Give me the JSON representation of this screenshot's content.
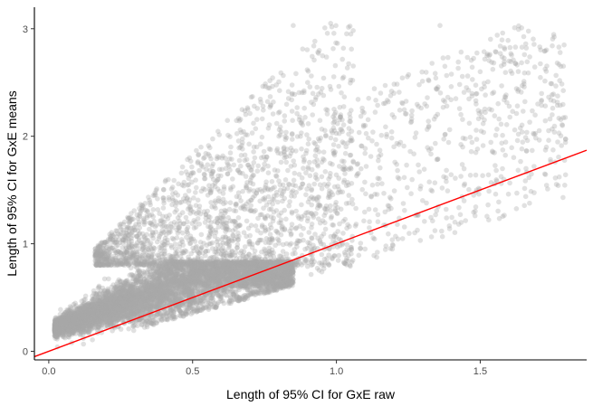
{
  "chart_data": {
    "type": "scatter",
    "title": "",
    "xlabel": "Length of 95% CI for GxE raw",
    "ylabel": "Length of 95% CI for GxE means",
    "xlim": [
      -0.05,
      1.87
    ],
    "ylim": [
      -0.08,
      3.2
    ],
    "x_ticks": [
      0,
      0.5,
      1,
      1.5
    ],
    "x_tick_labels": [
      "0.0",
      "0.5",
      "1.0",
      "1.5"
    ],
    "y_ticks": [
      0,
      1,
      2,
      3
    ],
    "y_tick_labels": [
      "0",
      "1",
      "2",
      "3"
    ],
    "grid": false,
    "legend": "none",
    "point_color": "#aaaaaa",
    "point_alpha": 0.35,
    "approx_point_count": 9000,
    "trend_line": {
      "slope": 1.0,
      "intercept": 0.0,
      "color": "#ff0000"
    },
    "sample_points": [
      [
        0.03,
        0.04
      ],
      [
        0.08,
        0.08
      ],
      [
        0.12,
        0.12
      ],
      [
        0.18,
        0.2
      ],
      [
        0.2,
        0.83
      ],
      [
        0.25,
        0.3
      ],
      [
        0.3,
        0.45
      ],
      [
        0.35,
        0.35
      ],
      [
        0.4,
        0.6
      ],
      [
        0.45,
        0.8
      ],
      [
        0.5,
        0.5
      ],
      [
        0.55,
        0.7
      ],
      [
        0.6,
        0.85
      ],
      [
        0.65,
        1.2
      ],
      [
        0.7,
        1.0
      ],
      [
        0.75,
        1.5
      ],
      [
        0.8,
        2.0
      ],
      [
        0.85,
        3.03
      ],
      [
        0.9,
        2.5
      ],
      [
        0.98,
        3.05
      ],
      [
        1.05,
        2.95
      ],
      [
        1.1,
        2.1
      ],
      [
        1.2,
        2.4
      ],
      [
        1.36,
        3.03
      ],
      [
        1.5,
        2.6
      ],
      [
        1.6,
        2.7
      ],
      [
        1.7,
        2.3
      ],
      [
        1.75,
        2.2
      ],
      [
        1.78,
        2.65
      ]
    ]
  }
}
